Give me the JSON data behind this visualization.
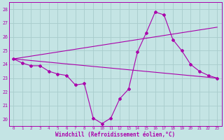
{
  "xlabel": "Windchill (Refroidissement éolien,°C)",
  "xlim": [
    -0.5,
    23.5
  ],
  "ylim": [
    19.5,
    28.5
  ],
  "yticks": [
    20,
    21,
    22,
    23,
    24,
    25,
    26,
    27,
    28
  ],
  "xticks": [
    0,
    1,
    2,
    3,
    4,
    5,
    6,
    7,
    8,
    9,
    10,
    11,
    12,
    13,
    14,
    15,
    16,
    17,
    18,
    19,
    20,
    21,
    22,
    23
  ],
  "background_color": "#c4e4e4",
  "grid_color": "#a8cccc",
  "line_color": "#aa00aa",
  "curve1_x": [
    0,
    1,
    2,
    3,
    4,
    5,
    6,
    7,
    8,
    9,
    10,
    11,
    12,
    13,
    14,
    15,
    16,
    17,
    18,
    19,
    20,
    21,
    22,
    23
  ],
  "curve1_y": [
    24.4,
    24.1,
    23.9,
    23.9,
    23.5,
    23.3,
    23.2,
    22.5,
    22.6,
    20.1,
    19.7,
    20.1,
    21.5,
    22.2,
    24.9,
    26.3,
    27.8,
    27.6,
    25.8,
    25.0,
    24.0,
    23.5,
    23.2,
    23.0
  ],
  "curve2_x": [
    0,
    23
  ],
  "curve2_y": [
    24.4,
    23.0
  ],
  "curve3_x": [
    0,
    23
  ],
  "curve3_y": [
    24.4,
    26.7
  ]
}
